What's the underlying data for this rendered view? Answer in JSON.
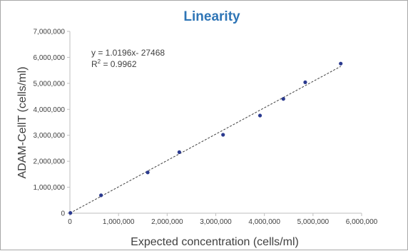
{
  "chart_data": {
    "type": "scatter",
    "title": "Linearity",
    "xlabel": "Expected concentration (cells/ml)",
    "ylabel": "ADAM-CellT (cells/ml)",
    "xlim": [
      0,
      6000000
    ],
    "ylim": [
      0,
      7000000
    ],
    "x_ticks": [
      0,
      1000000,
      2000000,
      3000000,
      4000000,
      5000000,
      6000000
    ],
    "x_tick_labels": [
      "0",
      "1,000,000",
      "2,000,000",
      "3,000,000",
      "4,000,000",
      "5,000,000",
      "6,000,000"
    ],
    "y_ticks": [
      0,
      1000000,
      2000000,
      3000000,
      4000000,
      5000000,
      6000000,
      7000000
    ],
    "y_tick_labels": [
      "0",
      "1,000,000",
      "2,000,000",
      "3,000,000",
      "4,000,000",
      "5,000,000",
      "6,000,000",
      "7,000,000"
    ],
    "points": [
      {
        "x": 10000,
        "y": 10000
      },
      {
        "x": 640000,
        "y": 690000
      },
      {
        "x": 1600000,
        "y": 1570000
      },
      {
        "x": 2250000,
        "y": 2350000
      },
      {
        "x": 3150000,
        "y": 3020000
      },
      {
        "x": 3910000,
        "y": 3760000
      },
      {
        "x": 4390000,
        "y": 4400000
      },
      {
        "x": 4840000,
        "y": 5040000
      },
      {
        "x": 5570000,
        "y": 5760000
      }
    ],
    "trendline": {
      "type": "linear",
      "slope": 1.0196,
      "intercept": -27468,
      "x_range": [
        0,
        5570000
      ]
    },
    "annotations": {
      "equation": "y = 1.0196x- 27468",
      "r2_label": "R",
      "r2_sup": "2",
      "r2_value": " = 0.9962"
    },
    "grid": false,
    "legend": "none",
    "colors": {
      "title": "#2e75b6",
      "points": "#2b3a8f",
      "trendline": "#404040",
      "axis": "#bfbfbf",
      "text": "#404040"
    }
  }
}
